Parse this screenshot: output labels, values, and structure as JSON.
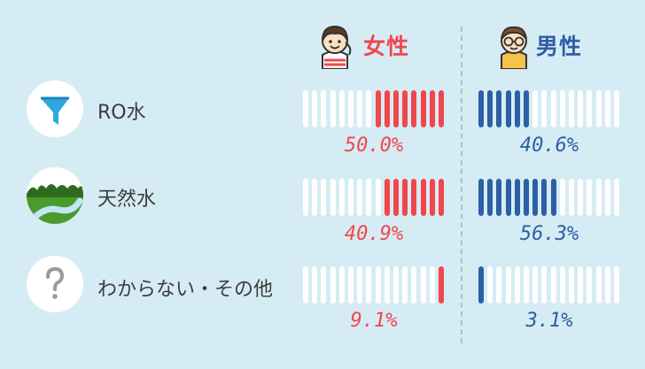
{
  "headers": {
    "female": "女性",
    "male": "男性"
  },
  "colors": {
    "female": "#f0474c",
    "male": "#2d5fa4",
    "empty": "#ffffff",
    "background": "#d6ecf5"
  },
  "icons": {
    "female": "girl-avatar-icon",
    "male": "boy-with-glasses-avatar-icon",
    "ro": "funnel-filter-icon",
    "natural": "river-landscape-icon",
    "unknown": "question-mark-icon"
  },
  "segments_per_bar": 16,
  "chart_data": {
    "type": "bar",
    "orientation": "horizontal-segmented",
    "categories": [
      "RO水",
      "天然水",
      "わからない・その他"
    ],
    "series": [
      {
        "name": "女性",
        "values": [
          50.0,
          40.9,
          9.1
        ],
        "labels": [
          "50.0%",
          "40.9%",
          "9.1%"
        ]
      },
      {
        "name": "男性",
        "values": [
          40.6,
          56.3,
          3.1
        ],
        "labels": [
          "40.6%",
          "56.3%",
          "3.1%"
        ]
      }
    ],
    "ylim": [
      0,
      100
    ]
  }
}
